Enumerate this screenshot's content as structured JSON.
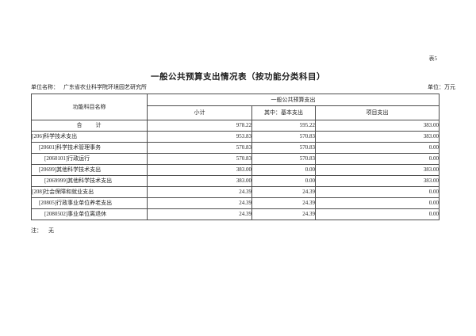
{
  "page": {
    "sheet_label": "表5",
    "title": "一般公共预算支出情况表（按功能分类科目）",
    "unit_name_label": "单位名称：",
    "unit_name": "广东省农业科学院环境园艺研究所",
    "unit_measure_label": "单位：万元",
    "note_label": "注：",
    "note_value": "无"
  },
  "table": {
    "col_function_header": "功能科目名称",
    "group_header": "一般公共预算支出",
    "sub_headers": {
      "subtotal": "小计",
      "basic": "其中：基本支出",
      "project": "项目支出"
    },
    "rows": [
      {
        "name": "合　　计",
        "align": "center",
        "indent": 0,
        "subtotal": "978.22",
        "basic": "595.22",
        "project": "383.00"
      },
      {
        "name": "[206]科学技术支出",
        "indent": 0,
        "subtotal": "953.83",
        "basic": "570.83",
        "project": "383.00"
      },
      {
        "name": "[20601]科学技术管理事务",
        "indent": 1,
        "subtotal": "570.83",
        "basic": "570.83",
        "project": "0.00"
      },
      {
        "name": "[2060101]行政运行",
        "indent": 2,
        "subtotal": "570.83",
        "basic": "570.83",
        "project": "0.00"
      },
      {
        "name": "[20699]其他科学技术支出",
        "indent": 1,
        "subtotal": "383.00",
        "basic": "0.00",
        "project": "383.00"
      },
      {
        "name": "[2069999]其他科学技术支出",
        "indent": 2,
        "subtotal": "383.00",
        "basic": "0.00",
        "project": "383.00"
      },
      {
        "name": "[208]社会保障和就业支出",
        "indent": 0,
        "subtotal": "24.39",
        "basic": "24.39",
        "project": "0.00"
      },
      {
        "name": "[20805]行政事业单位养老支出",
        "indent": 1,
        "subtotal": "24.39",
        "basic": "24.39",
        "project": "0.00"
      },
      {
        "name": "[2080502]事业单位离退休",
        "indent": 2,
        "subtotal": "24.39",
        "basic": "24.39",
        "project": "0.00"
      }
    ]
  }
}
